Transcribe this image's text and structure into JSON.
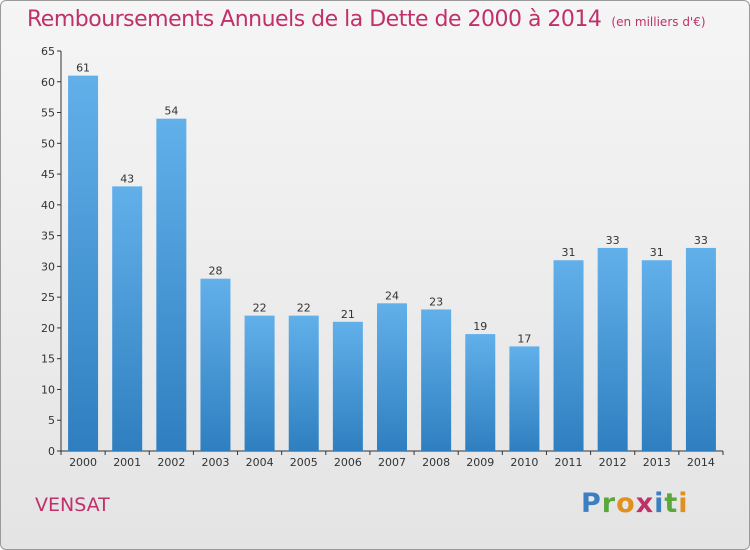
{
  "title": "Remboursements Annuels de la Dette de 2000 à 2014",
  "unit": "(en milliers d'€)",
  "city": "VENSAT",
  "logo": "Proxiti",
  "colors": {
    "title": "#c0306a",
    "bar_light": "#62b0ea",
    "bar_dark": "#2f7fc0",
    "axis": "#333333",
    "grid": "#c8c8c8"
  },
  "chart_data": {
    "type": "bar",
    "title": "Remboursements Annuels de la Dette de 2000 à 2014",
    "subtitle": "(en milliers d'€)",
    "xlabel": "",
    "ylabel": "",
    "categories": [
      "2000",
      "2001",
      "2002",
      "2003",
      "2004",
      "2005",
      "2006",
      "2007",
      "2008",
      "2009",
      "2010",
      "2011",
      "2012",
      "2013",
      "2014"
    ],
    "values": [
      61,
      43,
      54,
      28,
      22,
      22,
      21,
      24,
      23,
      19,
      17,
      31,
      33,
      31,
      33
    ],
    "ylim": [
      0,
      65
    ],
    "yticks": [
      0,
      5,
      10,
      15,
      20,
      25,
      30,
      35,
      40,
      45,
      50,
      55,
      60,
      65
    ],
    "grid": false,
    "data_labels": true,
    "legend": "none"
  }
}
